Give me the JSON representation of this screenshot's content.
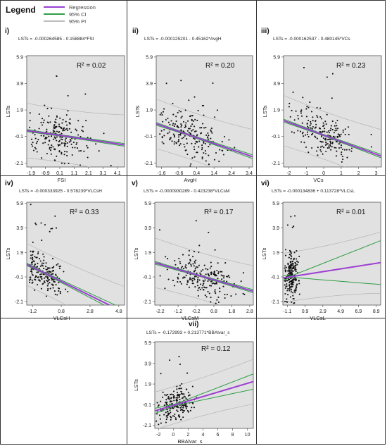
{
  "legend": {
    "title": "Legend",
    "items": [
      {
        "label": "Regression",
        "color": "#9b3fd1"
      },
      {
        "label": "95% CI",
        "color": "#2f9e44"
      },
      {
        "label": "95% PI",
        "color": "#bdbdbd"
      }
    ]
  },
  "chart_data": [
    {
      "type": "scatter",
      "panel": "i)",
      "equation": "LSTs = -0.000264585 - 0.158884*FSI",
      "r2_label": "R² = 0.02",
      "xlabel": "FSI",
      "ylabel": "LSTs",
      "xlim": [
        -2.2,
        4.6
      ],
      "ylim": [
        -2.4,
        6.0
      ],
      "xticks": [
        "-1.9",
        "-0.9",
        "0.1",
        "1.1",
        "2.1",
        "3.1",
        "4.1"
      ],
      "xtick_values": [
        -1.9,
        -0.9,
        0.1,
        1.1,
        2.1,
        3.1,
        4.1
      ],
      "yticks": [
        "5.9",
        "3.9",
        "1.9",
        "-0.1",
        "-2.1"
      ],
      "ytick_values": [
        5.9,
        3.9,
        1.9,
        -0.1,
        -2.1
      ],
      "regression": {
        "intercept": -0.000264585,
        "slope": -0.158884
      },
      "ci_halfwidth": [
        0.05,
        0.09
      ],
      "pi_halfwidth": 2.0,
      "points_spec": {
        "n": 210,
        "xcenter": 0.1,
        "xspread": 1.0,
        "noise": 0.9,
        "seed": 11
      }
    },
    {
      "type": "scatter",
      "panel": "ii)",
      "equation": "LSTs = -0.000125201 - 0.45162*AvgH",
      "r2_label": "R² = 0.20",
      "xlabel": "AvgH",
      "ylabel": "LSTs",
      "xlim": [
        -1.9,
        3.6
      ],
      "ylim": [
        -2.4,
        6.0
      ],
      "xticks": [
        "-1.6",
        "-0.6",
        "0.4",
        "1.4",
        "2.4",
        "3.4"
      ],
      "xtick_values": [
        -1.6,
        -0.6,
        0.4,
        1.4,
        2.4,
        3.4
      ],
      "yticks": [
        "5.9",
        "3.9",
        "1.9",
        "-0.1",
        "-2.1"
      ],
      "ytick_values": [
        5.9,
        3.9,
        1.9,
        -0.1,
        -2.1
      ],
      "regression": {
        "intercept": -0.000125201,
        "slope": -0.45162
      },
      "ci_halfwidth": [
        0.05,
        0.12
      ],
      "pi_halfwidth": 1.8,
      "points_spec": {
        "n": 200,
        "xcenter": 0.0,
        "xspread": 0.9,
        "noise": 0.85,
        "seed": 23
      }
    },
    {
      "type": "scatter",
      "panel": "iii)",
      "equation": "LSTs = -0.000162537 - 0.480145*VCs",
      "r2_label": "R² = 0.23",
      "xlabel": "VCs",
      "ylabel": "LSTs",
      "xlim": [
        -2.3,
        3.3
      ],
      "ylim": [
        -2.4,
        6.0
      ],
      "xticks": [
        "-2",
        "-1",
        "0",
        "1",
        "2",
        "3"
      ],
      "xtick_values": [
        -2,
        -1,
        0,
        1,
        2,
        3
      ],
      "yticks": [
        "5.9",
        "3.9",
        "1.9",
        "-0.1",
        "-2.1"
      ],
      "ytick_values": [
        5.9,
        3.9,
        1.9,
        -0.1,
        -2.1
      ],
      "regression": {
        "intercept": -0.000162537,
        "slope": -0.480145
      },
      "ci_halfwidth": [
        0.05,
        0.12
      ],
      "pi_halfwidth": 1.8,
      "points_spec": {
        "n": 210,
        "xcenter": 0.0,
        "xspread": 0.9,
        "noise": 0.8,
        "seed": 37
      }
    },
    {
      "type": "scatter",
      "panel": "iv)",
      "equation": "LSTs = -0.000333925 - 0.578239*VLCsH",
      "r2_label": "R² = 0.33",
      "xlabel": "VLCsH",
      "ylabel": "LSTs",
      "xlim": [
        -1.6,
        5.2
      ],
      "ylim": [
        -2.4,
        6.0
      ],
      "xticks": [
        "-1.2",
        "0.8",
        "2.8",
        "4.8"
      ],
      "xtick_values": [
        -1.2,
        0.8,
        2.8,
        4.8
      ],
      "yticks": [
        "5.9",
        "3.9",
        "1.9",
        "-0.1",
        "-2.1"
      ],
      "ytick_values": [
        5.9,
        3.9,
        1.9,
        -0.1,
        -2.1
      ],
      "regression": {
        "intercept": -0.000333925,
        "slope": -0.578239
      },
      "ci_halfwidth": [
        0.06,
        0.18
      ],
      "pi_halfwidth": 1.7,
      "points_spec": {
        "n": 200,
        "xcenter": -0.5,
        "xspread": 0.7,
        "noise": 0.75,
        "seed": 41
      }
    },
    {
      "type": "scatter",
      "panel": "v)",
      "equation": "LSTs = -0.0000930289 - 0.423238*VLCsM",
      "r2_label": "R² = 0.17",
      "xlabel": "VLCsM",
      "ylabel": "LSTs",
      "xlim": [
        -2.5,
        3.0
      ],
      "ylim": [
        -2.4,
        6.0
      ],
      "xticks": [
        "-2.2",
        "-1.2",
        "-0.2",
        "0.8",
        "1.8",
        "2.8"
      ],
      "xtick_values": [
        -2.2,
        -1.2,
        -0.2,
        0.8,
        1.8,
        2.8
      ],
      "yticks": [
        "5.9",
        "3.9",
        "1.9",
        "-0.1",
        "-2.1"
      ],
      "ytick_values": [
        5.9,
        3.9,
        1.9,
        -0.1,
        -2.1
      ],
      "regression": {
        "intercept": -9.30289e-05,
        "slope": -0.423238
      },
      "ci_halfwidth": [
        0.05,
        0.12
      ],
      "pi_halfwidth": 1.9,
      "points_spec": {
        "n": 210,
        "xcenter": 0.0,
        "xspread": 1.0,
        "noise": 0.85,
        "seed": 53
      }
    },
    {
      "type": "scatter",
      "panel": "vi)",
      "equation": "LSTs = -0.000134836 + 0.113728*VLCsL",
      "r2_label": "R² = 0.01",
      "xlabel": "VLCsL",
      "ylabel": "LSTs",
      "xlim": [
        -1.6,
        9.4
      ],
      "ylim": [
        -2.4,
        6.0
      ],
      "xticks": [
        "-1.1",
        "0.9",
        "2.9",
        "4.9",
        "6.9",
        "8.9"
      ],
      "xtick_values": [
        -1.1,
        0.9,
        2.9,
        4.9,
        6.9,
        8.9
      ],
      "yticks": [
        "5.9",
        "3.9",
        "1.9",
        "-0.1",
        "-2.1"
      ],
      "ytick_values": [
        5.9,
        3.9,
        1.9,
        -0.1,
        -2.1
      ],
      "regression": {
        "intercept": -0.000134836,
        "slope": 0.113728
      },
      "ci_halfwidth": [
        0.05,
        1.0
      ],
      "pi_halfwidth": 2.0,
      "points_spec": {
        "n": 210,
        "xcenter": -0.7,
        "xspread": 0.35,
        "noise": 0.9,
        "seed": 67
      }
    },
    {
      "type": "scatter",
      "panel": "vii)",
      "equation": "LSTs = -0.172993 + 0.213771*BBAlvar_s",
      "r2_label": "R² = 0.12",
      "xlabel": "BBAlvar_s",
      "ylabel": "LSTs",
      "xlim": [
        -2.5,
        10.8
      ],
      "ylim": [
        -2.4,
        6.0
      ],
      "xticks": [
        "-2",
        "0",
        "2",
        "4",
        "6",
        "8",
        "10"
      ],
      "xtick_values": [
        -2,
        0,
        2,
        4,
        6,
        8,
        10
      ],
      "yticks": [
        "5.9",
        "3.9",
        "1.9",
        "-0.1",
        "-2.1"
      ],
      "ytick_values": [
        5.9,
        3.9,
        1.9,
        -0.1,
        -2.1
      ],
      "regression": {
        "intercept": -0.172993,
        "slope": 0.213771
      },
      "ci_halfwidth": [
        0.08,
        0.5
      ],
      "pi_halfwidth": 1.8,
      "points_spec": {
        "n": 200,
        "xcenter": 0.3,
        "xspread": 1.3,
        "noise": 0.8,
        "seed": 79
      }
    }
  ]
}
